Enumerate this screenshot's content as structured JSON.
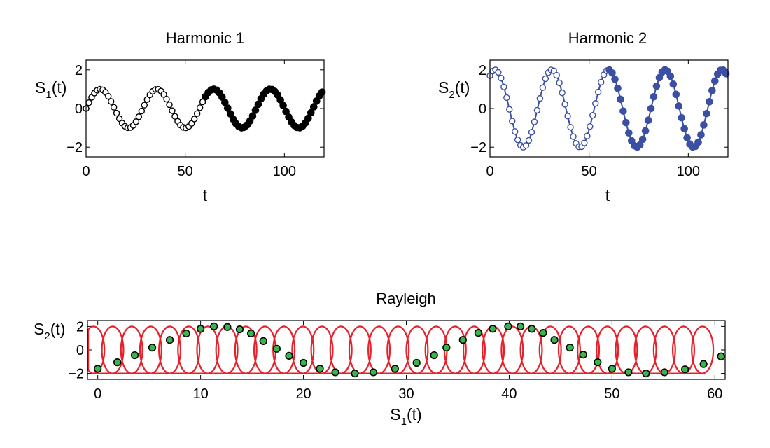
{
  "chart_data": [
    {
      "type": "scatter",
      "title": "Harmonic 1",
      "title_color": "#000000",
      "xlabel": "t",
      "ylabel": "S",
      "ylabel_sub": "1",
      "ylabel_suffix": "(t)",
      "xlim": [
        0,
        120
      ],
      "ylim": [
        -2.5,
        2.5
      ],
      "xticks": [
        0,
        50,
        100
      ],
      "xtick_labels": [
        "0",
        "50",
        "100"
      ],
      "yticks": [
        -2,
        0,
        2
      ],
      "ytick_labels": [
        "−2",
        "0",
        "2"
      ],
      "grid": false,
      "color": "#000000",
      "model": {
        "amplitude": 1.0,
        "period": 28.6,
        "phase_t0": 0.0
      },
      "samples": {
        "t_start": 0,
        "t_end": 120,
        "t_step": 1.4,
        "open_until_t": 60
      },
      "series": [
        {
          "style": "line"
        },
        {
          "style": "open markers"
        },
        {
          "style": "filled markers"
        }
      ]
    },
    {
      "type": "scatter",
      "title": "Harmonic 2",
      "title_color": "#3b4fa3",
      "xlabel": "t",
      "ylabel": "S",
      "ylabel_sub": "2",
      "ylabel_suffix": "(t)",
      "xlim": [
        0,
        120
      ],
      "ylim": [
        -2.5,
        2.5
      ],
      "xticks": [
        0,
        50,
        100
      ],
      "xtick_labels": [
        "0",
        "50",
        "100"
      ],
      "yticks": [
        -2,
        0,
        2
      ],
      "ytick_labels": [
        "−2",
        "0",
        "2"
      ],
      "grid": false,
      "color": "#3b4fa3",
      "model": {
        "amplitude": 2.0,
        "period": 28.6,
        "phase_t0": -4.6
      },
      "samples": {
        "t_start": 0,
        "t_end": 120,
        "t_step": 1.4,
        "open_until_t": 60
      },
      "series": [
        {
          "style": "line"
        },
        {
          "style": "open markers"
        },
        {
          "style": "filled markers"
        }
      ]
    },
    {
      "type": "line",
      "title": "Rayleigh",
      "title_color": "#e8202a",
      "xlabel": "S",
      "xlabel_sub": "1",
      "xlabel_suffix": "(t)",
      "ylabel": "S",
      "ylabel_sub": "2",
      "ylabel_suffix": "(t)",
      "xlim": [
        -1,
        61
      ],
      "ylim": [
        -2.5,
        2.5
      ],
      "xticks": [
        0,
        10,
        20,
        30,
        40,
        50,
        60
      ],
      "xtick_labels": [
        "0",
        "10",
        "20",
        "30",
        "40",
        "50",
        "60"
      ],
      "yticks": [
        -2,
        0,
        2
      ],
      "ytick_labels": [
        "−2",
        "0",
        "2"
      ],
      "grid": false,
      "curve_color": "#e8202a",
      "marker_fill": "#3ab54a",
      "marker_edge": "#000000",
      "loops": {
        "count": 33,
        "x_start": -0.4,
        "x_step": 1.85,
        "x_radius": 1.05,
        "y_radius": 2.0
      },
      "points": [
        {
          "x": 0.0,
          "y": -1.6
        },
        {
          "x": 1.9,
          "y": -1.05
        },
        {
          "x": 3.6,
          "y": -0.45
        },
        {
          "x": 5.3,
          "y": 0.2
        },
        {
          "x": 7.0,
          "y": 0.85
        },
        {
          "x": 8.6,
          "y": 1.4
        },
        {
          "x": 10.0,
          "y": 1.8
        },
        {
          "x": 11.3,
          "y": 2.0
        },
        {
          "x": 12.6,
          "y": 1.95
        },
        {
          "x": 13.8,
          "y": 1.75
        },
        {
          "x": 14.9,
          "y": 1.4
        },
        {
          "x": 16.1,
          "y": 0.75
        },
        {
          "x": 17.4,
          "y": 0.1
        },
        {
          "x": 18.6,
          "y": -0.5
        },
        {
          "x": 20.0,
          "y": -1.1
        },
        {
          "x": 21.6,
          "y": -1.6
        },
        {
          "x": 23.1,
          "y": -1.9
        },
        {
          "x": 25.0,
          "y": -2.0
        },
        {
          "x": 26.8,
          "y": -1.9
        },
        {
          "x": 28.9,
          "y": -1.6
        },
        {
          "x": 31.0,
          "y": -1.1
        },
        {
          "x": 32.7,
          "y": -0.45
        },
        {
          "x": 33.9,
          "y": 0.2
        },
        {
          "x": 35.5,
          "y": 0.85
        },
        {
          "x": 37.0,
          "y": 1.45
        },
        {
          "x": 38.4,
          "y": 1.8
        },
        {
          "x": 39.9,
          "y": 2.0
        },
        {
          "x": 41.1,
          "y": 2.0
        },
        {
          "x": 42.2,
          "y": 1.8
        },
        {
          "x": 43.3,
          "y": 1.45
        },
        {
          "x": 44.4,
          "y": 0.85
        },
        {
          "x": 45.9,
          "y": 0.2
        },
        {
          "x": 47.2,
          "y": -0.4
        },
        {
          "x": 48.6,
          "y": -1.05
        },
        {
          "x": 50.0,
          "y": -1.6
        },
        {
          "x": 51.6,
          "y": -1.9
        },
        {
          "x": 53.3,
          "y": -2.0
        },
        {
          "x": 55.1,
          "y": -1.9
        },
        {
          "x": 57.1,
          "y": -1.65
        },
        {
          "x": 58.9,
          "y": -1.2
        },
        {
          "x": 60.6,
          "y": -0.55
        }
      ]
    }
  ]
}
